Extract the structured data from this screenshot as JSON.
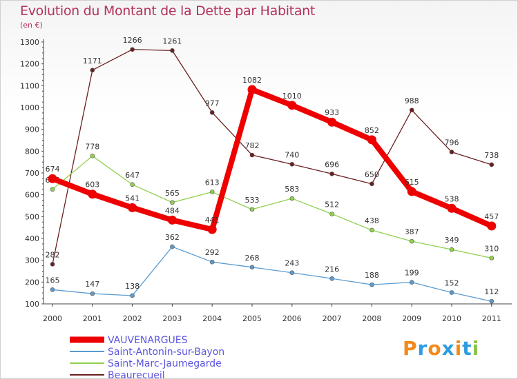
{
  "header": {
    "title": "Evolution du Montant de la Dette par Habitant",
    "subtitle": "(en €)"
  },
  "logo": {
    "chars": [
      "P",
      "r",
      "o",
      "x",
      "i",
      "t",
      "i"
    ],
    "colors": [
      "#f28a1c",
      "#2f9be0",
      "#f28a1c",
      "#2f9be0",
      "#f28a1c",
      "#2f9be0",
      "#8bc34a"
    ]
  },
  "chart_data": {
    "type": "line",
    "title": "Evolution du Montant de la Dette par Habitant",
    "ylabel": "(en €)",
    "xlabel": "",
    "x": [
      "2000",
      "2001",
      "2002",
      "2003",
      "2004",
      "2005",
      "2006",
      "2007",
      "2008",
      "2009",
      "2010",
      "2011"
    ],
    "ylim": [
      100,
      1300
    ],
    "yticks": [
      100,
      200,
      300,
      400,
      500,
      600,
      700,
      800,
      900,
      1000,
      1100,
      1200,
      1300
    ],
    "grid": false,
    "legend": "bottom-left",
    "series": [
      {
        "name": "Beaurecueil",
        "color": "#6b1f1f",
        "values": [
          282,
          1171,
          1266,
          1261,
          977,
          782,
          740,
          696,
          650,
          988,
          796,
          738
        ]
      },
      {
        "name": "Saint-Marc-Jaumegarde",
        "color": "#8fd04e",
        "values": [
          625,
          778,
          647,
          565,
          613,
          533,
          583,
          512,
          438,
          387,
          349,
          310
        ]
      },
      {
        "name": "Saint-Antonin-sur-Bayon",
        "color": "#5b9bd0",
        "values": [
          165,
          147,
          138,
          362,
          292,
          268,
          243,
          216,
          188,
          199,
          152,
          112
        ]
      },
      {
        "name": "VAUVENARGUES",
        "color": "#ee0000",
        "values": [
          674,
          603,
          541,
          484,
          441,
          1082,
          1010,
          933,
          852,
          615,
          538,
          457
        ]
      }
    ],
    "data_labels": [
      {
        "series": "Beaurecueil",
        "labels": [
          "282",
          "1171",
          "1266",
          "1261",
          "977",
          "782",
          "740",
          "696",
          "650",
          "988",
          "796",
          "738"
        ]
      },
      {
        "series": "Saint-Marc-Jaumegarde",
        "labels": [
          "625",
          "778",
          "647",
          "565",
          "613",
          "533",
          "583",
          "512",
          "438",
          "387",
          "349",
          "310"
        ]
      },
      {
        "series": "Saint-Antonin-sur-Bayon",
        "labels": [
          "165",
          "147",
          "138",
          "362",
          "292",
          "268",
          "243",
          "216",
          "188",
          "199",
          "152",
          "112"
        ]
      },
      {
        "series": "VAUVENARGUES",
        "labels": [
          "674",
          "603",
          "541",
          "484",
          "441",
          "1082",
          "1010",
          "933",
          "852",
          "615",
          "538",
          "457"
        ]
      }
    ],
    "legend_order": [
      "VAUVENARGUES",
      "Saint-Antonin-sur-Bayon",
      "Saint-Marc-Jaumegarde",
      "Beaurecueil"
    ]
  }
}
